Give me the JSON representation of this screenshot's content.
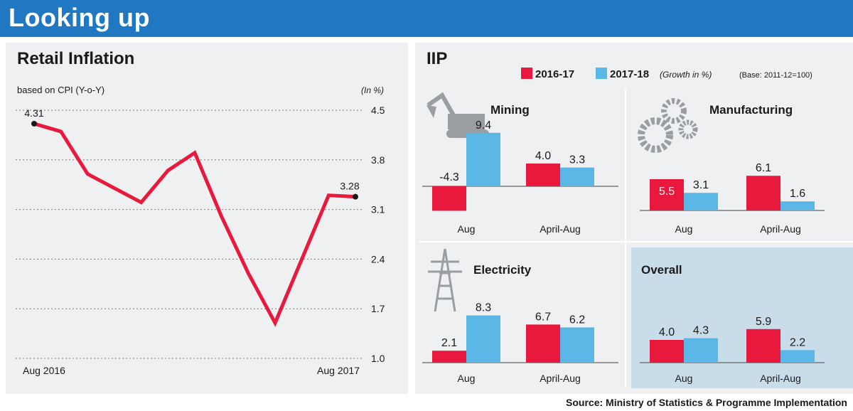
{
  "header": {
    "title": "Looking up"
  },
  "source": "Source: Ministry of Statistics & Programme Implementation",
  "colors": {
    "banner": "#1f78c1",
    "series_2016_17": "#e8193c",
    "series_2017_18": "#5bb8e6",
    "panel": "#eef0f2",
    "overall_panel": "#c9dce9"
  },
  "chart_data": [
    {
      "type": "line",
      "title": "Retail Inflation",
      "subtitle": "based on CPI (Y-o-Y)",
      "unit": "(In %)",
      "ylim": [
        1.0,
        4.5
      ],
      "yticks": [
        1.0,
        1.7,
        2.4,
        3.1,
        3.8,
        4.5
      ],
      "xlabels": [
        "Aug 2016",
        "Aug 2017"
      ],
      "grid": true,
      "values": [
        4.31,
        4.2,
        3.6,
        3.4,
        3.2,
        3.65,
        3.9,
        3.0,
        2.2,
        1.5,
        2.4,
        3.3,
        3.28
      ],
      "annotations": [
        {
          "index": 0,
          "label": "4.31"
        },
        {
          "index": 12,
          "label": "3.28"
        }
      ]
    },
    {
      "type": "bar",
      "title": "IIP",
      "legend": [
        {
          "name": "2016-17",
          "color": "#e8193c"
        },
        {
          "name": "2017-18",
          "color": "#5bb8e6"
        }
      ],
      "growth_note": "(Growth in %)",
      "base_note": "(Base: 2011-12=100)",
      "categories": [
        "Aug",
        "April-Aug"
      ],
      "panels": [
        {
          "name": "Mining",
          "icon": "mining-excavator-icon",
          "series": [
            {
              "name": "2016-17",
              "values": [
                -4.3,
                4.0
              ]
            },
            {
              "name": "2017-18",
              "values": [
                9.4,
                3.3
              ]
            }
          ]
        },
        {
          "name": "Manufacturing",
          "icon": "gears-icon",
          "series": [
            {
              "name": "2016-17",
              "values": [
                5.5,
                6.1
              ]
            },
            {
              "name": "2017-18",
              "values": [
                3.1,
                1.6
              ]
            }
          ]
        },
        {
          "name": "Electricity",
          "icon": "power-tower-icon",
          "series": [
            {
              "name": "2016-17",
              "values": [
                2.1,
                6.7
              ]
            },
            {
              "name": "2017-18",
              "values": [
                8.3,
                6.2
              ]
            }
          ]
        },
        {
          "name": "Overall",
          "icon": "",
          "series": [
            {
              "name": "2016-17",
              "values": [
                4.0,
                5.9
              ]
            },
            {
              "name": "2017-18",
              "values": [
                4.3,
                2.2
              ]
            }
          ]
        }
      ]
    }
  ]
}
